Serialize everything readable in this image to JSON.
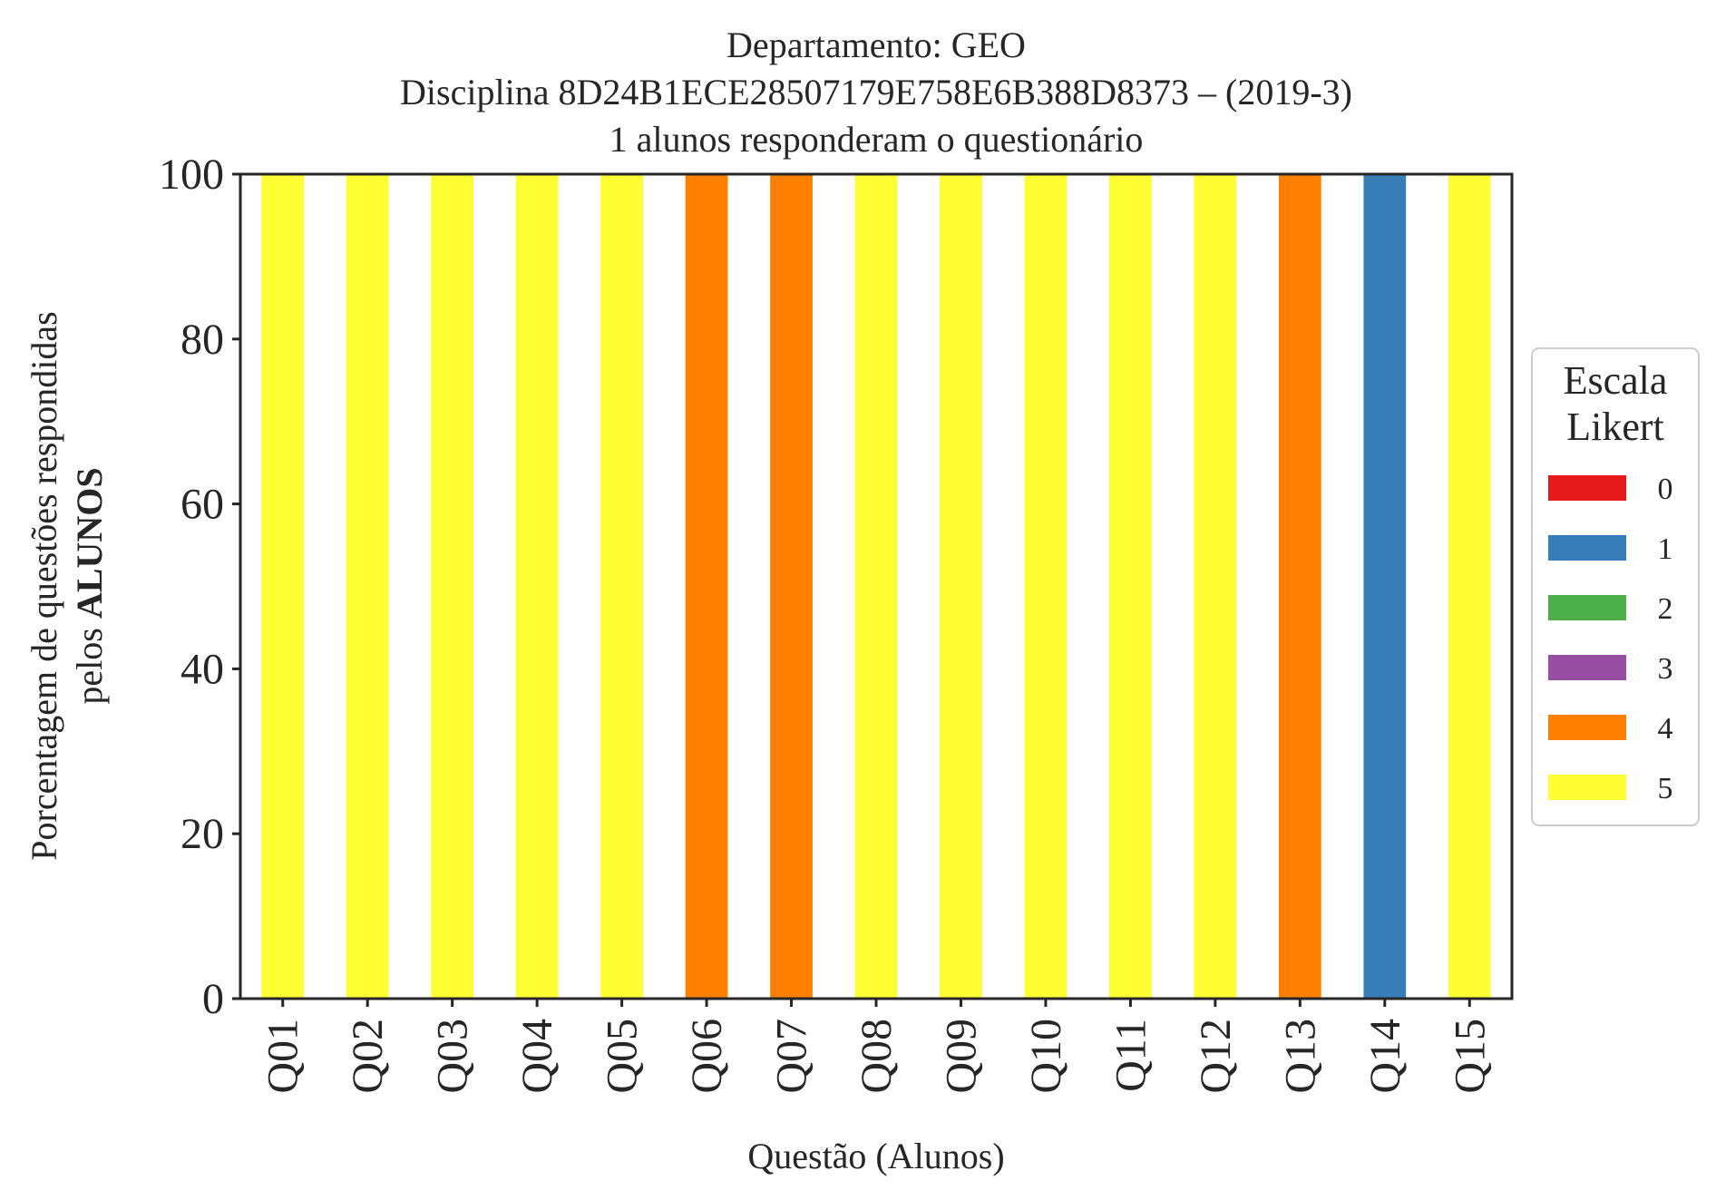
{
  "chart_data": {
    "type": "bar",
    "stacked": true,
    "title": [
      "Departamento: GEO",
      "Disciplina 8D24B1ECE28507179E758E6B388D8373 – (2019-3)",
      "1 alunos responderam o questionário"
    ],
    "xlabel": "Questão (Alunos)",
    "ylabel_line1": "Porcentagem de questões respondidas",
    "ylabel_line2_prefix": "pelos ",
    "ylabel_line2_bold": "ALUNOS",
    "ylim": [
      0,
      100
    ],
    "yticks": [
      0,
      20,
      40,
      60,
      80,
      100
    ],
    "categories": [
      "Q01",
      "Q02",
      "Q03",
      "Q04",
      "Q05",
      "Q06",
      "Q07",
      "Q08",
      "Q09",
      "Q10",
      "Q11",
      "Q12",
      "Q13",
      "Q14",
      "Q15"
    ],
    "legend": {
      "title_line1": "Escala",
      "title_line2": "Likert",
      "placement": "right-center"
    },
    "series": [
      {
        "name": "0",
        "color": "#e41a1c",
        "values": [
          0,
          0,
          0,
          0,
          0,
          0,
          0,
          0,
          0,
          0,
          0,
          0,
          0,
          0,
          0
        ]
      },
      {
        "name": "1",
        "color": "#377eb8",
        "values": [
          0,
          0,
          0,
          0,
          0,
          0,
          0,
          0,
          0,
          0,
          0,
          0,
          0,
          100,
          0
        ]
      },
      {
        "name": "2",
        "color": "#4daf4a",
        "values": [
          0,
          0,
          0,
          0,
          0,
          0,
          0,
          0,
          0,
          0,
          0,
          0,
          0,
          0,
          0
        ]
      },
      {
        "name": "3",
        "color": "#984ea3",
        "values": [
          0,
          0,
          0,
          0,
          0,
          0,
          0,
          0,
          0,
          0,
          0,
          0,
          0,
          0,
          0
        ]
      },
      {
        "name": "4",
        "color": "#ff7f00",
        "values": [
          0,
          0,
          0,
          0,
          0,
          100,
          100,
          0,
          0,
          0,
          0,
          0,
          100,
          0,
          0
        ]
      },
      {
        "name": "5",
        "color": "#ffff33",
        "values": [
          100,
          100,
          100,
          100,
          100,
          0,
          0,
          100,
          100,
          100,
          100,
          100,
          0,
          0,
          100
        ]
      }
    ],
    "grid": false
  }
}
